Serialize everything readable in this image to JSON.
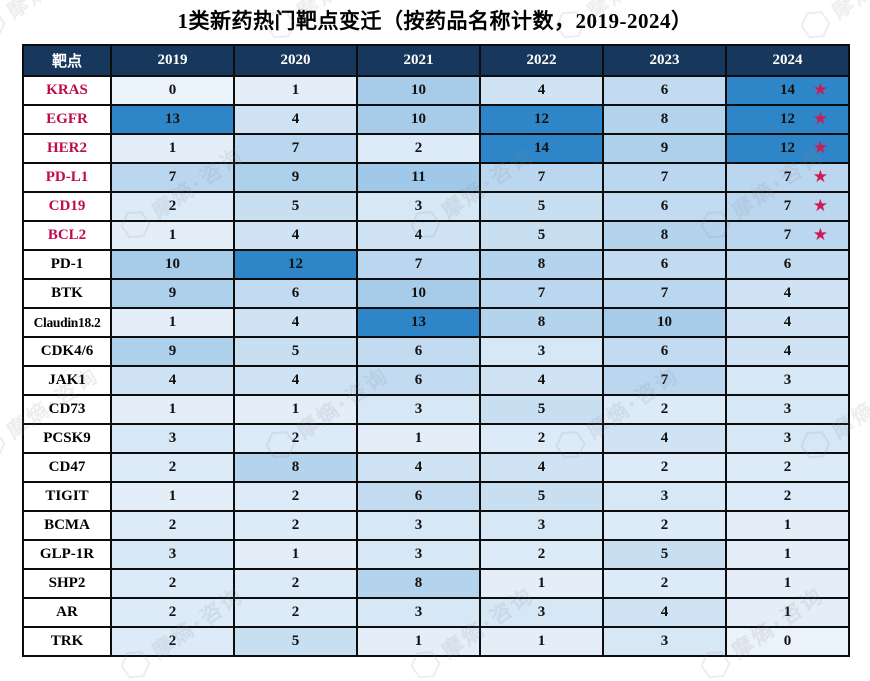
{
  "title": "1类新药热门靶点变迁（按药品名称计数，2019-2024）",
  "watermark_text": "摩熵·咨询",
  "icons": {
    "star": "★",
    "watermark_hexagon": "⬡"
  },
  "colors": {
    "header_bg": "#17375D",
    "header_text": "#FFFFFF",
    "cell_high": "#2E86C8",
    "cell_mid": "#A0C8E8",
    "cell_low": "#EAF2FB",
    "cell_border": "#0D0D0D",
    "value_text": "#111111",
    "target_red": "#C00A4E",
    "star": "#D01A55",
    "high_threshold": 12
  },
  "chart_data": {
    "type": "heatmap",
    "title": "1类新药热门靶点变迁（按药品名称计数，2019-2024）",
    "columns": [
      "靶点",
      "2019",
      "2020",
      "2021",
      "2022",
      "2023",
      "2024"
    ],
    "value_range": [
      0,
      14
    ],
    "rows": [
      {
        "target": "KRAS",
        "red": true,
        "star": true,
        "values": [
          0,
          1,
          10,
          4,
          6,
          14
        ]
      },
      {
        "target": "EGFR",
        "red": true,
        "star": true,
        "values": [
          13,
          4,
          10,
          12,
          8,
          12
        ]
      },
      {
        "target": "HER2",
        "red": true,
        "star": true,
        "values": [
          1,
          7,
          2,
          14,
          9,
          12
        ]
      },
      {
        "target": "PD-L1",
        "red": true,
        "star": true,
        "values": [
          7,
          9,
          11,
          7,
          7,
          7
        ]
      },
      {
        "target": "CD19",
        "red": true,
        "star": true,
        "values": [
          2,
          5,
          3,
          5,
          6,
          7
        ]
      },
      {
        "target": "BCL2",
        "red": true,
        "star": true,
        "values": [
          1,
          4,
          4,
          5,
          8,
          7
        ]
      },
      {
        "target": "PD-1",
        "red": false,
        "star": false,
        "values": [
          10,
          12,
          7,
          8,
          6,
          6
        ]
      },
      {
        "target": "BTK",
        "red": false,
        "star": false,
        "values": [
          9,
          6,
          10,
          7,
          7,
          4
        ]
      },
      {
        "target": "Claudin18.2",
        "red": false,
        "star": false,
        "values": [
          1,
          4,
          13,
          8,
          10,
          4
        ]
      },
      {
        "target": "CDK4/6",
        "red": false,
        "star": false,
        "values": [
          9,
          5,
          6,
          3,
          6,
          4
        ]
      },
      {
        "target": "JAK1",
        "red": false,
        "star": false,
        "values": [
          4,
          4,
          6,
          4,
          7,
          3
        ]
      },
      {
        "target": "CD73",
        "red": false,
        "star": false,
        "values": [
          1,
          1,
          3,
          5,
          2,
          3
        ]
      },
      {
        "target": "PCSK9",
        "red": false,
        "star": false,
        "values": [
          3,
          2,
          1,
          2,
          4,
          3
        ]
      },
      {
        "target": "CD47",
        "red": false,
        "star": false,
        "values": [
          2,
          8,
          4,
          4,
          2,
          2
        ]
      },
      {
        "target": "TIGIT",
        "red": false,
        "star": false,
        "values": [
          1,
          2,
          6,
          5,
          3,
          2
        ]
      },
      {
        "target": "BCMA",
        "red": false,
        "star": false,
        "values": [
          2,
          2,
          3,
          3,
          2,
          1
        ]
      },
      {
        "target": "GLP-1R",
        "red": false,
        "star": false,
        "values": [
          3,
          1,
          3,
          2,
          5,
          1
        ]
      },
      {
        "target": "SHP2",
        "red": false,
        "star": false,
        "values": [
          2,
          2,
          8,
          1,
          2,
          1
        ]
      },
      {
        "target": "AR",
        "red": false,
        "star": false,
        "values": [
          2,
          2,
          3,
          3,
          4,
          1
        ]
      },
      {
        "target": "TRK",
        "red": false,
        "star": false,
        "values": [
          2,
          5,
          1,
          1,
          3,
          0
        ]
      }
    ]
  }
}
